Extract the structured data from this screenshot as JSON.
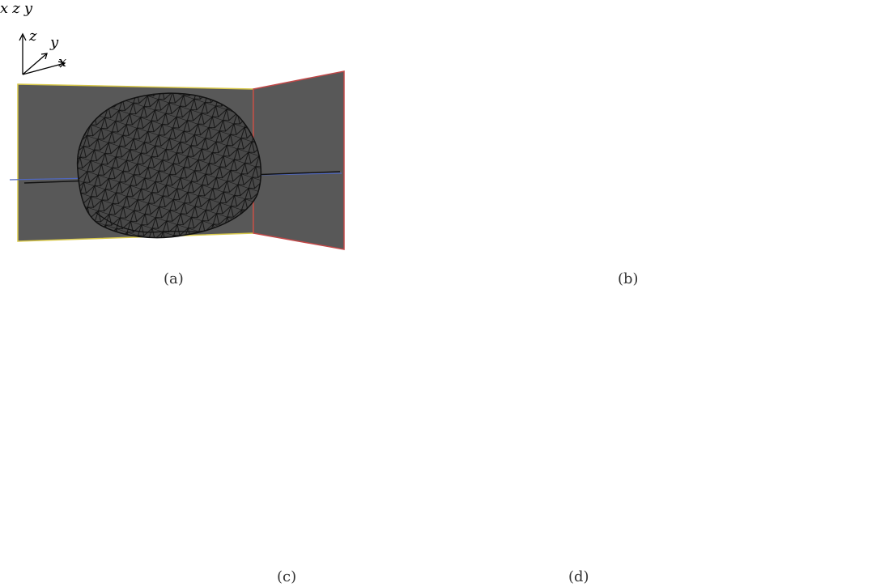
{
  "captions": {
    "a": "(a)",
    "b": "(b)",
    "c": "(c)",
    "d": "(d)"
  },
  "axes": {
    "a": {
      "z": "z",
      "y": "y",
      "x": "x"
    },
    "b": {
      "x": "x",
      "z": "z",
      "y": "y"
    }
  },
  "colors": {
    "viewport_bg": "#585858",
    "mesh_white": "#e8e8e8",
    "tumor_red": "#c81414",
    "slice_yellow": "#d8c84a",
    "slice_red": "#c04848",
    "slice_blue": "#5068c0"
  }
}
